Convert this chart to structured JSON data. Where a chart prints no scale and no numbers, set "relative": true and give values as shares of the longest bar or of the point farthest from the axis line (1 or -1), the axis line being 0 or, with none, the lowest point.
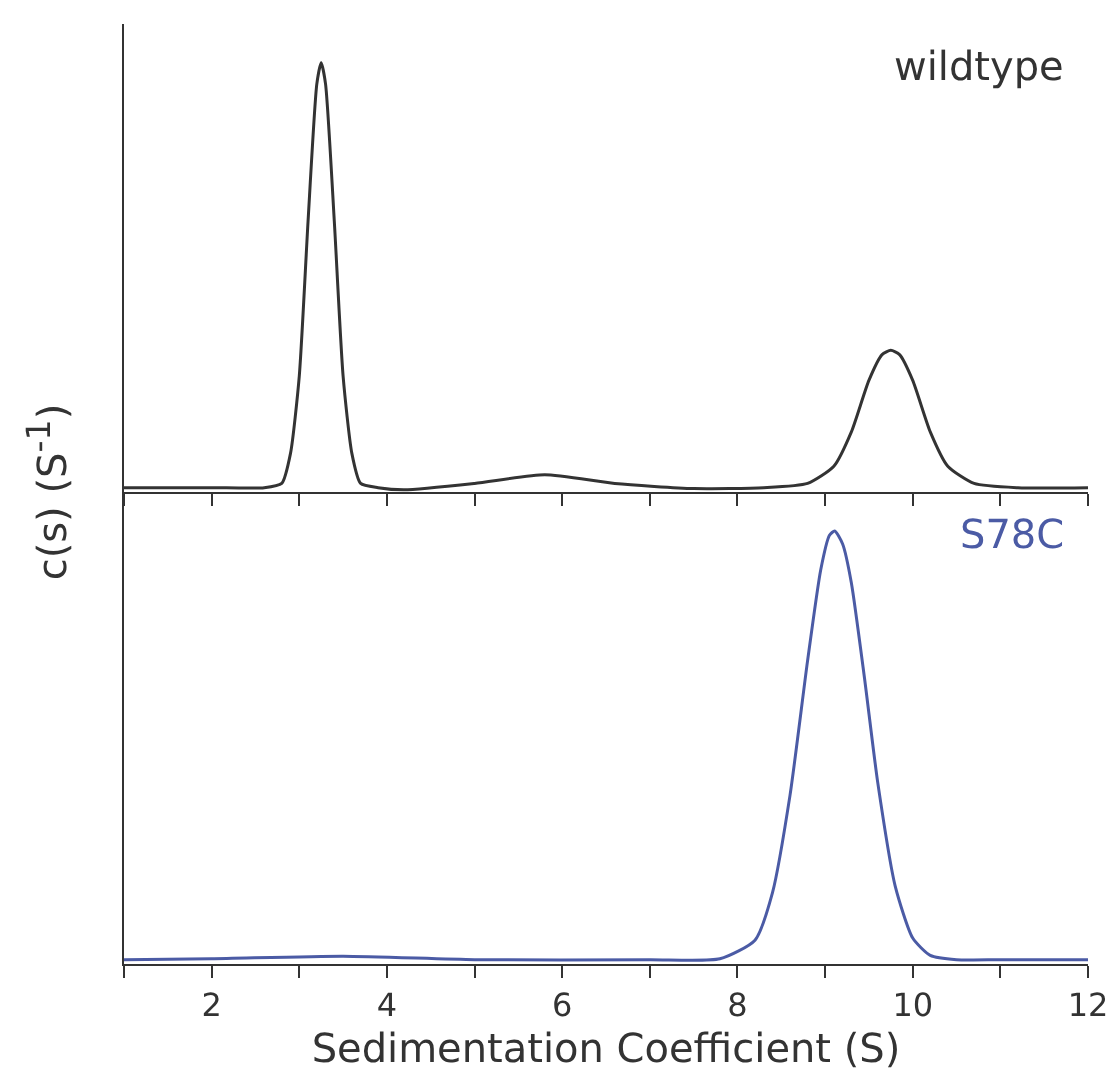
{
  "chart_data": [
    {
      "type": "line",
      "relative": true,
      "x": [
        1,
        2,
        2.6,
        2.8,
        2.9,
        3.0,
        3.1,
        3.2,
        3.25,
        3.3,
        3.4,
        3.5,
        3.6,
        3.7,
        3.9,
        4.2,
        5,
        5.8,
        6.6,
        7.5,
        8.3,
        8.8,
        9.1,
        9.3,
        9.5,
        9.65,
        9.75,
        9.85,
        10.0,
        10.2,
        10.4,
        10.7,
        11.2,
        12
      ],
      "xlim": [
        1,
        12
      ],
      "xticks": [
        {
          "value": 1,
          "label": null
        },
        2,
        {
          "value": 3,
          "label": null
        },
        4,
        {
          "value": 5,
          "label": null
        },
        6,
        {
          "value": 7,
          "label": null
        },
        8,
        {
          "value": 9,
          "label": null
        },
        10,
        {
          "value": 11,
          "label": null
        },
        12
      ],
      "tick_labels": false,
      "ylabel": "c(s) (S$^{-1}$)",
      "series": [
        {
          "name": "wildtype",
          "color": "#333333",
          "values": [
            0.01,
            0.01,
            0.01,
            0.02,
            0.09,
            0.27,
            0.63,
            0.95,
            1,
            0.95,
            0.63,
            0.27,
            0.09,
            0.02,
            0.01,
            0.005,
            0.02,
            0.04,
            0.02,
            0.008,
            0.01,
            0.02,
            0.06,
            0.14,
            0.26,
            0.32,
            0.33,
            0.32,
            0.26,
            0.14,
            0.06,
            0.02,
            0.01,
            0.01
          ]
        }
      ]
    },
    {
      "type": "line",
      "relative": true,
      "x": [
        1,
        2,
        3.5,
        5,
        7,
        7.8,
        8.2,
        8.4,
        8.6,
        8.8,
        8.95,
        9.05,
        9.11,
        9.2,
        9.3,
        9.45,
        9.6,
        9.8,
        10.0,
        10.2,
        10.5,
        11,
        12
      ],
      "xlim": [
        1,
        12
      ],
      "xticks": [
        {
          "value": 1,
          "label": null
        },
        2,
        {
          "value": 3,
          "label": null
        },
        4,
        {
          "value": 5,
          "label": null
        },
        6,
        {
          "value": 7,
          "label": null
        },
        8,
        {
          "value": 9,
          "label": null
        },
        10,
        {
          "value": 11,
          "label": null
        },
        12
      ],
      "xlabel": "Sedimentation Coefficient (S)",
      "series": [
        {
          "name": "S78C",
          "color": "#4b5ba5",
          "values": [
            0.01,
            0.012,
            0.018,
            0.01,
            0.01,
            0.012,
            0.055,
            0.165,
            0.39,
            0.7,
            0.91,
            0.99,
            1,
            0.97,
            0.88,
            0.66,
            0.42,
            0.18,
            0.06,
            0.02,
            0.01,
            0.01,
            0.01
          ]
        }
      ]
    }
  ]
}
